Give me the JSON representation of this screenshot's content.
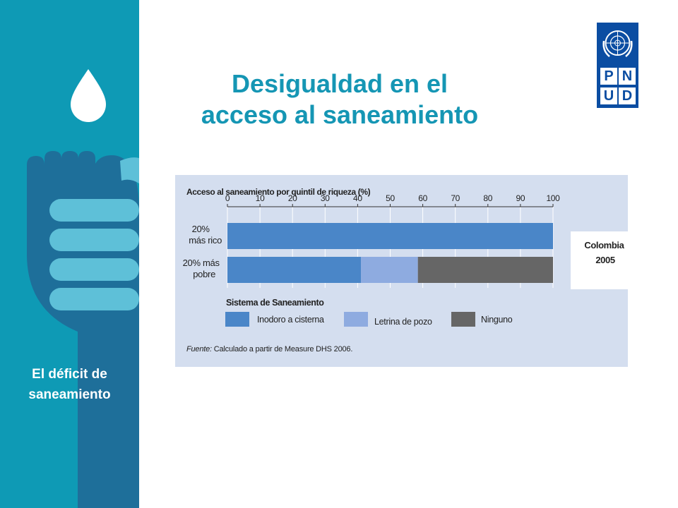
{
  "slide": {
    "title_line1": "Desigualdad en el",
    "title_line2": "acceso al saneamiento",
    "section_line1": "El déficit de",
    "section_line2": "saneamiento"
  },
  "logo": {
    "letters": [
      "P",
      "N",
      "U",
      "D"
    ],
    "background_color": "#0b4da2"
  },
  "chart_data": {
    "type": "bar",
    "orientation": "horizontal",
    "stacked": true,
    "title": "Acceso al saneamiento por quintil de riqueza (%)",
    "categories": [
      "20% más rico",
      "20% más pobre"
    ],
    "category_labels": [
      [
        "20%",
        "más rico"
      ],
      [
        "20% más",
        "pobre"
      ]
    ],
    "xlim": [
      0,
      100
    ],
    "xticks": [
      0,
      10,
      20,
      30,
      40,
      50,
      60,
      70,
      80,
      90,
      100
    ],
    "axis_position": "top",
    "grid": true,
    "series": [
      {
        "name": "Inodoro a cisterna",
        "values": [
          100,
          41
        ],
        "color": "#4a86c8"
      },
      {
        "name": "Letrina de pozo",
        "values": [
          0,
          17.5
        ],
        "color": "#8eabe0"
      },
      {
        "name": "Ninguno",
        "values": [
          0,
          41.5
        ],
        "color": "#666666"
      }
    ],
    "annotation": [
      "Colombia",
      "2005"
    ],
    "legend_title": "Sistema de Saneamiento",
    "legend_position": "bottom",
    "source_label": "Fuente:",
    "source_text": "Calculado a partir de Measure DHS 2006."
  }
}
